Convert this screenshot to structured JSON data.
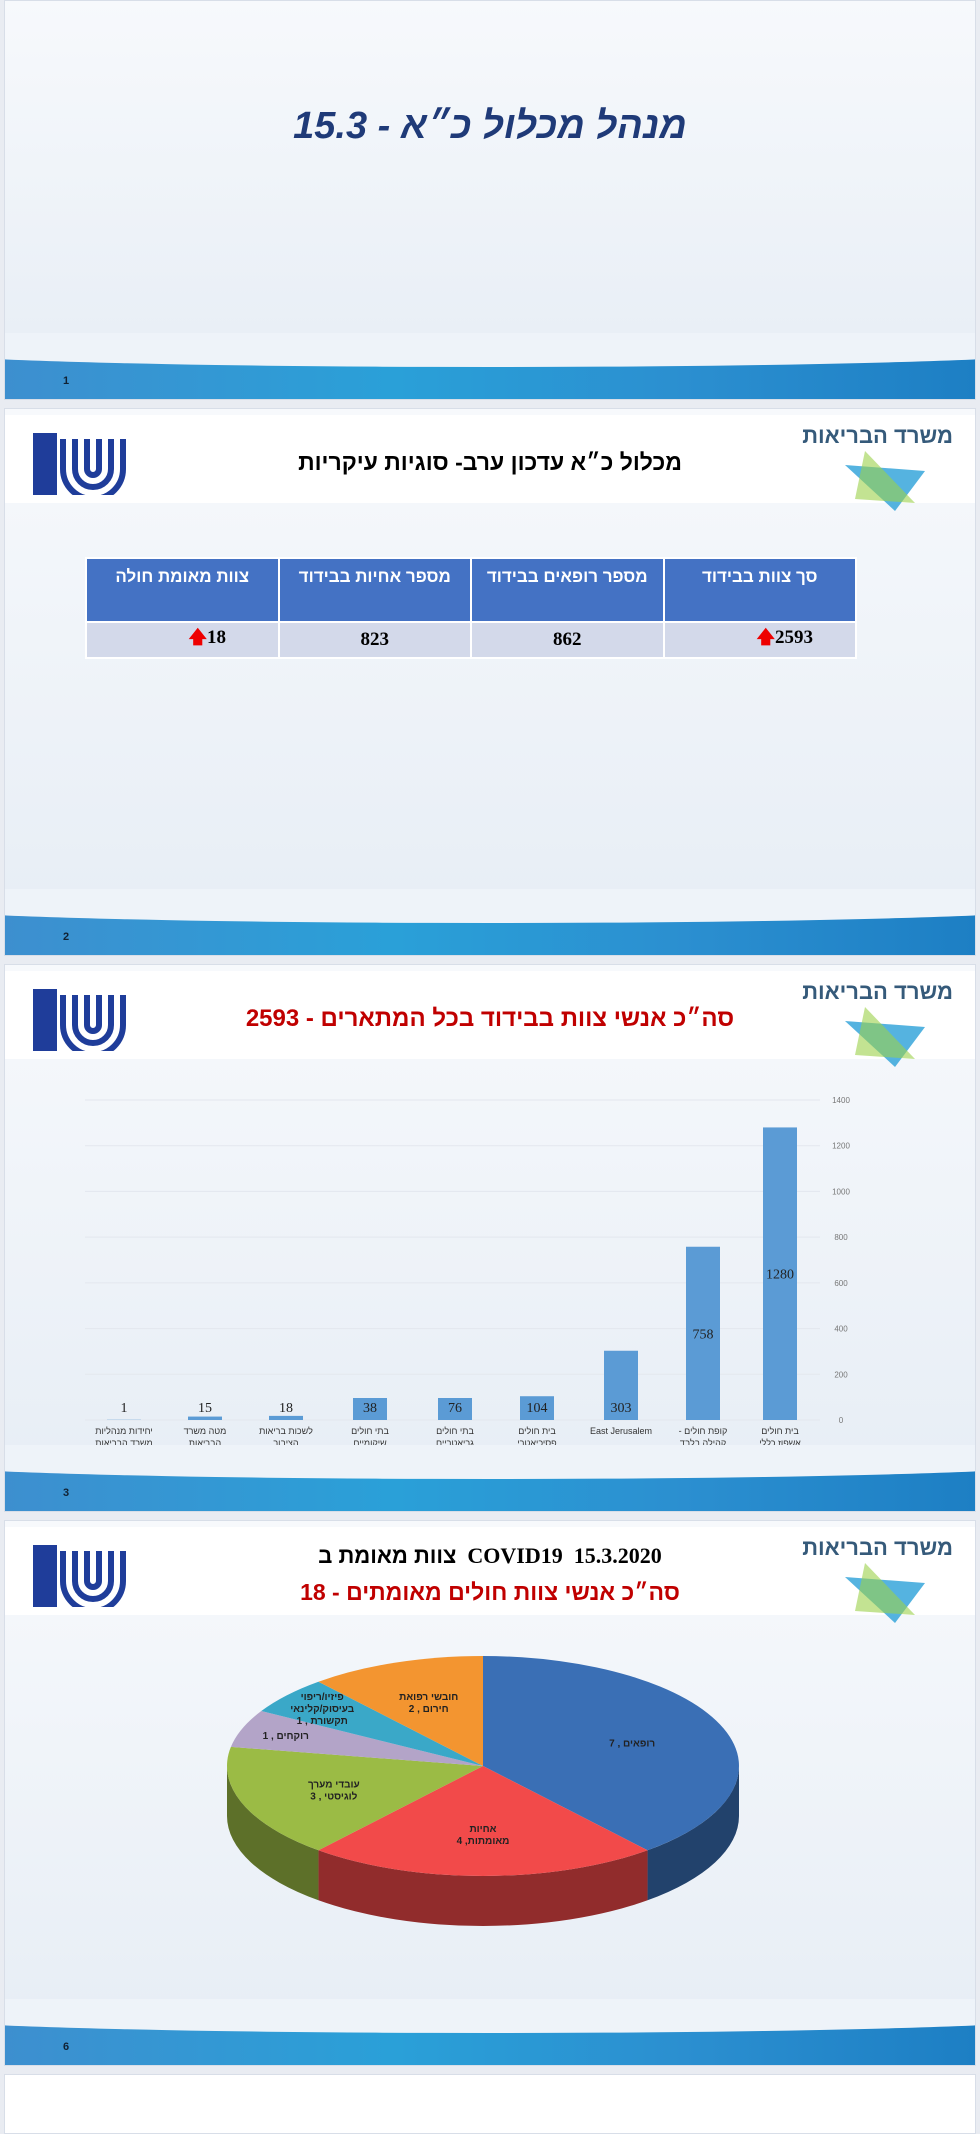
{
  "slide1": {
    "title": "מנהל מכלול כ״א - 15.3",
    "page": "1"
  },
  "common": {
    "ministry": "משרד הבריאות",
    "colors": {
      "header_blue": "#4472c4",
      "title_red": "#c00000",
      "title_navy": "#1f3a78"
    }
  },
  "slide2": {
    "title": "מכלול כ״א עדכון ערב- סוגיות עיקריות",
    "page": "2",
    "table": {
      "headers": [
        "סך צוות  בבידוד",
        "מספר רופאים בבידוד",
        "מספר  אחיות בבידוד",
        "צוות מאומת חולה"
      ],
      "values": [
        "2593",
        "862",
        "823",
        "18"
      ],
      "arrows": [
        "up",
        "",
        "",
        "up"
      ],
      "arrow_icon": "red-up-arrow-icon"
    }
  },
  "slide3": {
    "title": "סה״כ אנשי צוות בבידוד בכל המתארים  - 2593",
    "page": "3",
    "chart_data": {
      "type": "bar",
      "categories": [
        "בית חולים אשפוז כללי",
        "קופת חולים - קהילה בלבד",
        "East Jerusalem",
        "בית חולים פסיכיאטרי",
        "בתי חולים גריאטריים",
        "בתי חולים שיקומיים",
        "לשכות בריאות הציבור",
        "מטה משרד הבריאות",
        "יחידות מנהליות משרד הבריאות"
      ],
      "values": [
        1280,
        758,
        303,
        104,
        76,
        38,
        18,
        15,
        1
      ],
      "ylim": [
        0,
        1400
      ],
      "yticks": [
        "0",
        "200",
        "400",
        "600",
        "800",
        "1000",
        "1200",
        "1400"
      ],
      "y_axis_side": "right",
      "grid": true,
      "color": "#5b9bd5"
    }
  },
  "slide4": {
    "title_line1_he": "צוות מאומת ב",
    "title_line1_covid": "COVID19",
    "title_line1_date": "15.3.2020",
    "title_line2": "סה״כ אנשי צוות חולים מאומתים - 18",
    "page": "6",
    "chart_data": {
      "type": "pie",
      "3d": true,
      "slices": [
        {
          "label": "רופאים , 7",
          "value": 7,
          "color": "#3a6fb5"
        },
        {
          "label": "אחיות מאומתות, 4",
          "value": 4,
          "color": "#f24a4a"
        },
        {
          "label": "עובדי מערך לוגיסטי , 3",
          "value": 3,
          "color": "#9bbb45"
        },
        {
          "label": "רוקחים , 1",
          "value": 1,
          "color": "#b3a4c8"
        },
        {
          "label": "פיזיו/ריפוי בעיסוק/קלינאי תקשורת , 1",
          "value": 1,
          "color": "#3aa8c8"
        },
        {
          "label": "חובשי רפואת חירום , 2",
          "value": 2,
          "color": "#f39530"
        }
      ]
    }
  }
}
